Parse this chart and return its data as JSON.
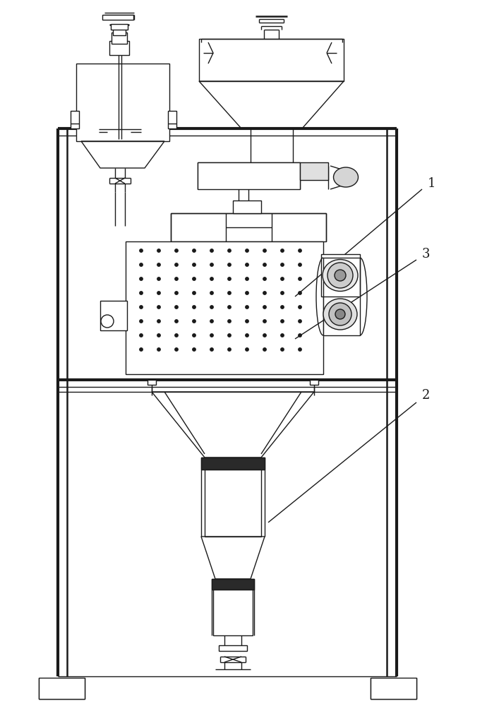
{
  "background_color": "#ffffff",
  "line_color": "#1a1a1a",
  "lw": 1.0,
  "lw2": 1.8,
  "lw3": 3.0,
  "label_fontsize": 13,
  "labels": [
    "1",
    "2",
    "3"
  ]
}
